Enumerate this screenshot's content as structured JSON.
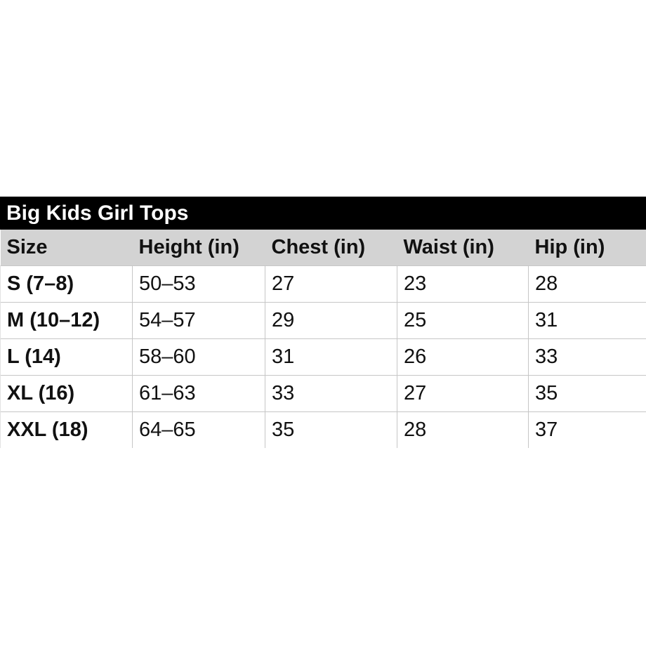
{
  "page": {
    "background_color": "#ffffff"
  },
  "table": {
    "title": "Big Kids Girl Tops",
    "title_bar_bg": "#000000",
    "title_color": "#ffffff",
    "header_bg": "#d3d3d3",
    "border_color": "#c6c6c6",
    "columns": [
      "Size",
      "Height (in)",
      "Chest (in)",
      "Waist (in)",
      "Hip (in)"
    ],
    "rows": [
      [
        "S (7–8)",
        "50–53",
        "27",
        "23",
        "28"
      ],
      [
        "M (10–12)",
        "54–57",
        "29",
        "25",
        "31"
      ],
      [
        "L (14)",
        "58–60",
        "31",
        "26",
        "33"
      ],
      [
        "XL (16)",
        "61–63",
        "33",
        "27",
        "35"
      ],
      [
        "XXL (18)",
        "64–65",
        "35",
        "28",
        "37"
      ]
    ]
  },
  "chart_data": {
    "type": "table",
    "title": "Big Kids Girl Tops",
    "columns": [
      "Size",
      "Height (in)",
      "Chest (in)",
      "Waist (in)",
      "Hip (in)"
    ],
    "rows": [
      {
        "size": "S (7–8)",
        "height_in": "50–53",
        "chest_in": 27,
        "waist_in": 23,
        "hip_in": 28
      },
      {
        "size": "M (10–12)",
        "height_in": "54–57",
        "chest_in": 29,
        "waist_in": 25,
        "hip_in": 31
      },
      {
        "size": "L (14)",
        "height_in": "58–60",
        "chest_in": 31,
        "waist_in": 26,
        "hip_in": 33
      },
      {
        "size": "XL (16)",
        "height_in": "61–63",
        "chest_in": 33,
        "waist_in": 27,
        "hip_in": 35
      },
      {
        "size": "XXL (18)",
        "height_in": "64–65",
        "chest_in": 35,
        "waist_in": 28,
        "hip_in": 37
      }
    ],
    "layout": {
      "title_position": "top-left",
      "header_row": true,
      "gridlines": true
    }
  }
}
